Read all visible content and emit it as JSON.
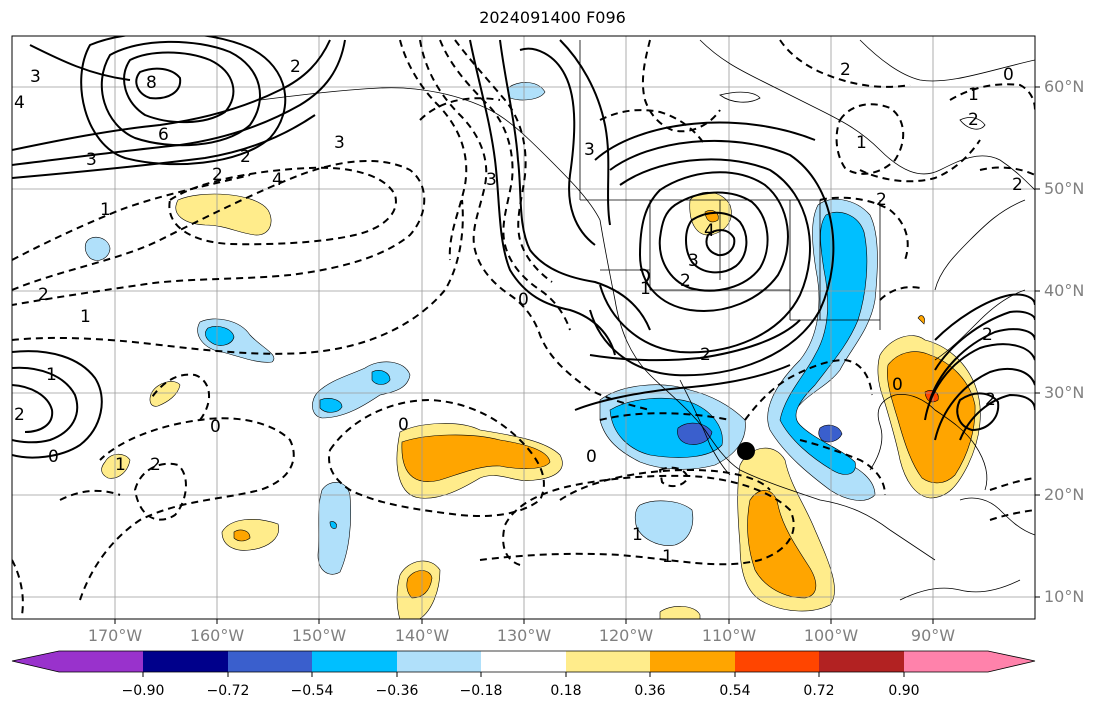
{
  "title": "2024091400 F096",
  "lat_ticks": [
    "60°N",
    "50°N",
    "40°N",
    "30°N",
    "20°N",
    "10°N"
  ],
  "lon_ticks": [
    "170°W",
    "160°W",
    "150°W",
    "140°W",
    "130°W",
    "120°W",
    "110°W",
    "100°W",
    "90°W"
  ],
  "colorbar": {
    "ticks": [
      "−0.90",
      "−0.72",
      "−0.54",
      "−0.36",
      "−0.18",
      "0.18",
      "0.36",
      "0.54",
      "0.72",
      "0.90"
    ],
    "colors": [
      "#9932cc",
      "#00008b",
      "#3a5fcd",
      "#00bfff",
      "#b0e0fa",
      "#ffffff",
      "#ffec8b",
      "#ffa500",
      "#ff4500",
      "#b22222",
      "#ff82ab"
    ]
  },
  "contour_labels": [
    "3",
    "4",
    "8",
    "6",
    "3",
    "2",
    "2",
    "1",
    "3",
    "4",
    "2",
    "1",
    "1",
    "1",
    "0",
    "2",
    "0",
    "2",
    "2",
    "0",
    "0",
    "1",
    "1",
    "2",
    "4",
    "3",
    "2",
    "1",
    "1",
    "2",
    "3",
    "3",
    "2",
    "0",
    "0",
    "0",
    "2",
    "2",
    "1",
    "2",
    "2"
  ],
  "marker": {
    "type": "filled-circle",
    "color": "#000000"
  }
}
